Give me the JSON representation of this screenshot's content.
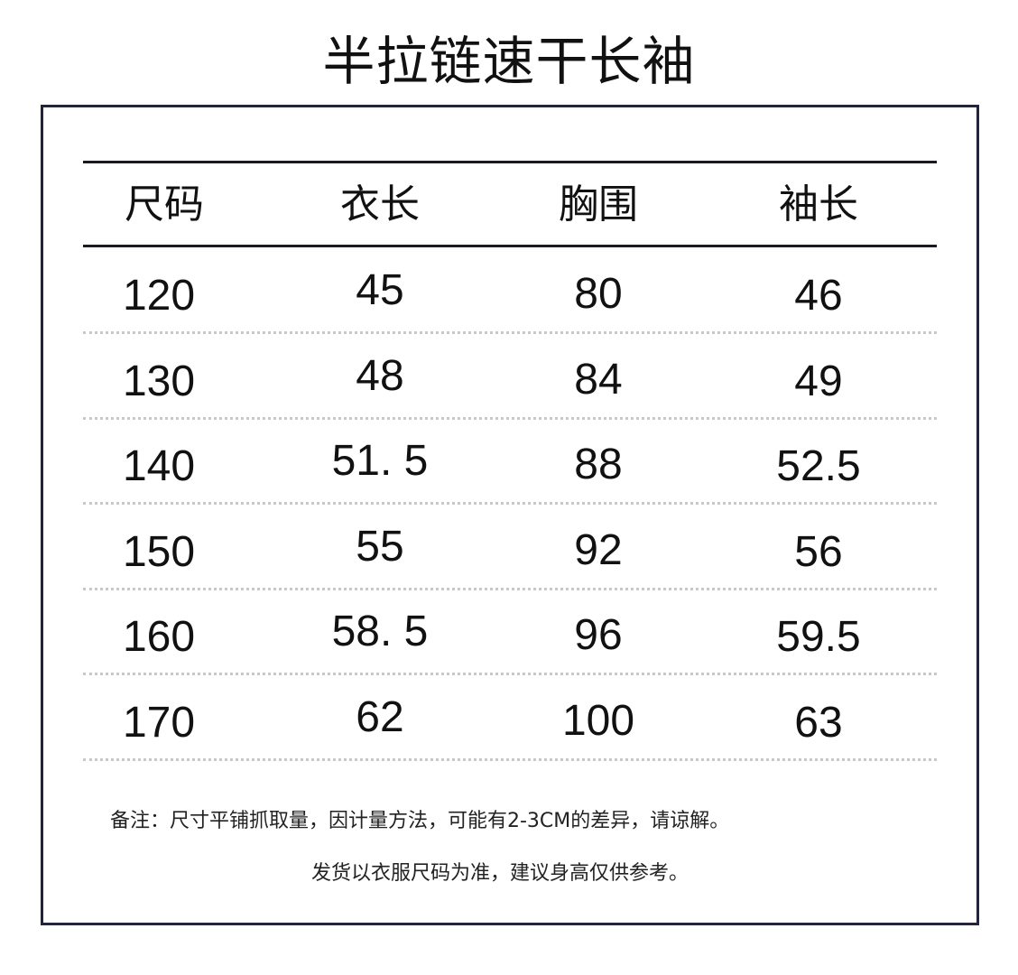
{
  "title": "半拉链速干长袖",
  "table": {
    "headers": [
      "尺码",
      "衣长",
      "胸围",
      "袖长"
    ],
    "rows": [
      [
        "120",
        "45",
        "80",
        "46"
      ],
      [
        "130",
        "48",
        "84",
        "49"
      ],
      [
        "140",
        "51. 5",
        "88",
        "52.5"
      ],
      [
        "150",
        "55",
        "92",
        "56"
      ],
      [
        "160",
        "58. 5",
        "96",
        "59.5"
      ],
      [
        "170",
        "62",
        "100",
        "63"
      ]
    ]
  },
  "notes": [
    "备注：尺寸平铺抓取量，因计量方法，可能有2-3CM的差异，请谅解。",
    "发货以衣服尺码为准，建议身高仅供参考。"
  ],
  "colors": {
    "frame": "#22243a",
    "rule": "#1a1a22",
    "dotted": "#c8c8c8"
  }
}
